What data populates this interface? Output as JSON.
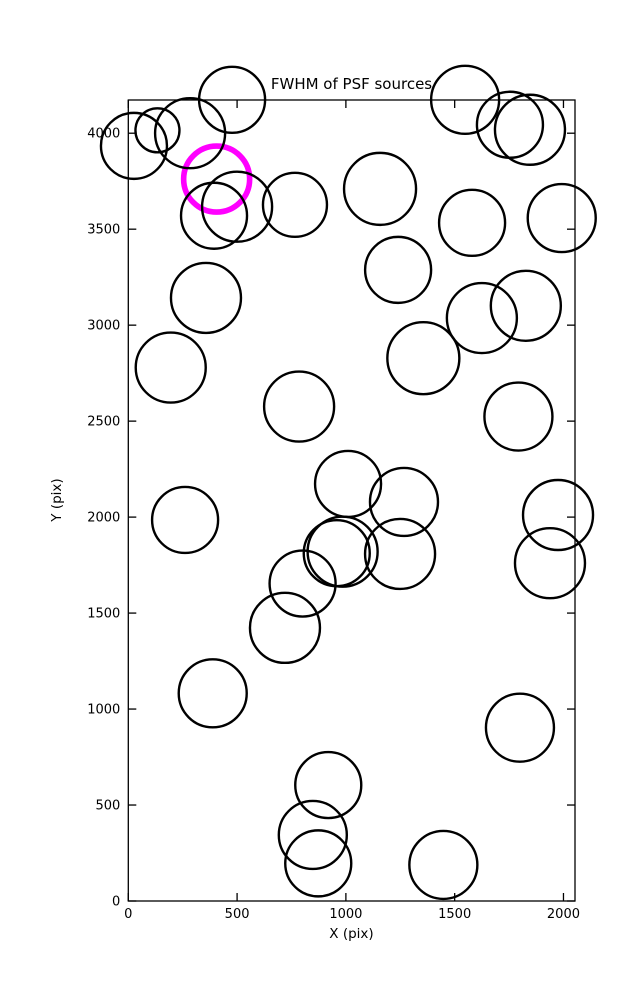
{
  "figure": {
    "title": "FWHM of PSF sources",
    "xlabel": "X (pix)",
    "ylabel": "Y (pix)"
  },
  "chart_data": {
    "type": "scatter",
    "title": "FWHM of PSF sources",
    "xlabel": "X (pix)",
    "ylabel": "Y (pix)",
    "xlim": [
      0,
      2053
    ],
    "ylim": [
      0,
      4173
    ],
    "x_ticks": [
      0,
      500,
      1000,
      1500,
      2000
    ],
    "y_ticks": [
      0,
      500,
      1000,
      1500,
      2000,
      2500,
      3000,
      3500,
      4000
    ],
    "grid": false,
    "legend": null,
    "marker_color": "#000000",
    "marker_stroke_width": 2.4,
    "highlight_color": "#FF00FF",
    "highlight_stroke_width": 5.6,
    "points": [
      {
        "x": 26,
        "y": 3934,
        "r": 33
      },
      {
        "x": 134,
        "y": 4015,
        "r": 22
      },
      {
        "x": 284,
        "y": 4000,
        "r": 35
      },
      {
        "x": 477,
        "y": 4174,
        "r": 33
      },
      {
        "x": 394,
        "y": 3570,
        "r": 33
      },
      {
        "x": 500,
        "y": 3617,
        "r": 35
      },
      {
        "x": 766,
        "y": 3627,
        "r": 32
      },
      {
        "x": 1157,
        "y": 3710,
        "r": 36
      },
      {
        "x": 1548,
        "y": 4174,
        "r": 34
      },
      {
        "x": 1754,
        "y": 4044,
        "r": 33
      },
      {
        "x": 1846,
        "y": 4018,
        "r": 35
      },
      {
        "x": 1992,
        "y": 3558,
        "r": 34
      },
      {
        "x": 1580,
        "y": 3533,
        "r": 33
      },
      {
        "x": 1240,
        "y": 3288,
        "r": 33
      },
      {
        "x": 357,
        "y": 3142,
        "r": 35
      },
      {
        "x": 195,
        "y": 2779,
        "r": 35
      },
      {
        "x": 785,
        "y": 2576,
        "r": 35
      },
      {
        "x": 1625,
        "y": 3037,
        "r": 35
      },
      {
        "x": 1827,
        "y": 3101,
        "r": 35
      },
      {
        "x": 1356,
        "y": 2828,
        "r": 36
      },
      {
        "x": 1793,
        "y": 2524,
        "r": 34
      },
      {
        "x": 1975,
        "y": 2011,
        "r": 35
      },
      {
        "x": 1938,
        "y": 1760,
        "r": 35
      },
      {
        "x": 261,
        "y": 1985,
        "r": 33
      },
      {
        "x": 1010,
        "y": 2173,
        "r": 33
      },
      {
        "x": 1267,
        "y": 2079,
        "r": 34
      },
      {
        "x": 958,
        "y": 1812,
        "r": 33
      },
      {
        "x": 985,
        "y": 1820,
        "r": 35
      },
      {
        "x": 1249,
        "y": 1808,
        "r": 35
      },
      {
        "x": 801,
        "y": 1654,
        "r": 33
      },
      {
        "x": 720,
        "y": 1423,
        "r": 35
      },
      {
        "x": 388,
        "y": 1082,
        "r": 34
      },
      {
        "x": 1800,
        "y": 903,
        "r": 34
      },
      {
        "x": 919,
        "y": 604,
        "r": 33
      },
      {
        "x": 848,
        "y": 344,
        "r": 34
      },
      {
        "x": 873,
        "y": 196,
        "r": 33
      },
      {
        "x": 1448,
        "y": 188,
        "r": 34
      }
    ],
    "highlighted_point": {
      "x": 406,
      "y": 3761,
      "r": 33
    }
  }
}
